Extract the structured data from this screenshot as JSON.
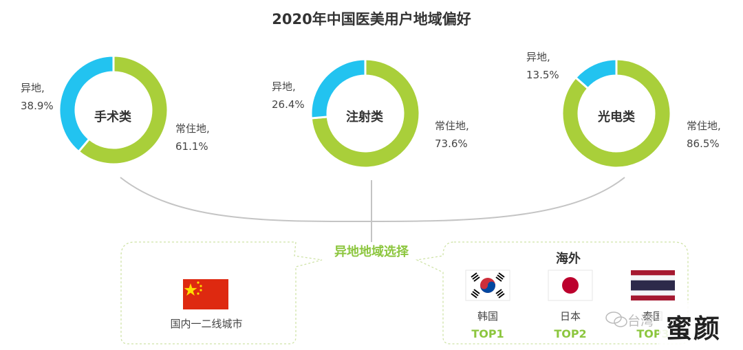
{
  "chart_data": {
    "type": "pie",
    "title": "2020年中国医美用户地域偏好",
    "colors": {
      "local": "#a9cf3a",
      "remote": "#22c3f0"
    },
    "charts": [
      {
        "name": "手术类",
        "slices": [
          {
            "label": "常住地,",
            "value": 61.1,
            "text": "61.1%"
          },
          {
            "label": "异地,",
            "value": 38.9,
            "text": "38.9%"
          }
        ]
      },
      {
        "name": "注射类",
        "slices": [
          {
            "label": "常住地,",
            "value": 73.6,
            "text": "73.6%"
          },
          {
            "label": "异地,",
            "value": 26.4,
            "text": "26.4%"
          }
        ]
      },
      {
        "name": "光电类",
        "slices": [
          {
            "label": "常住地,",
            "value": 86.5,
            "text": "86.5%"
          },
          {
            "label": "异地,",
            "value": 13.5,
            "text": "13.5%"
          }
        ]
      }
    ]
  },
  "selection": {
    "title": "异地地域选择",
    "domestic": {
      "label": "国内一二线城市",
      "flag_icon": "china-flag-icon"
    },
    "overseas": {
      "title": "海外",
      "countries": [
        {
          "name": "韩国",
          "rank": "TOP1",
          "flag_icon": "south-korea-flag-icon"
        },
        {
          "name": "日本",
          "rank": "TOP2",
          "flag_icon": "japan-flag-icon"
        },
        {
          "name": "泰国",
          "rank": "TOP3",
          "flag_icon": "thailand-flag-icon"
        }
      ]
    }
  },
  "watermark": {
    "text": "台湾",
    "big": "蜜颜"
  }
}
